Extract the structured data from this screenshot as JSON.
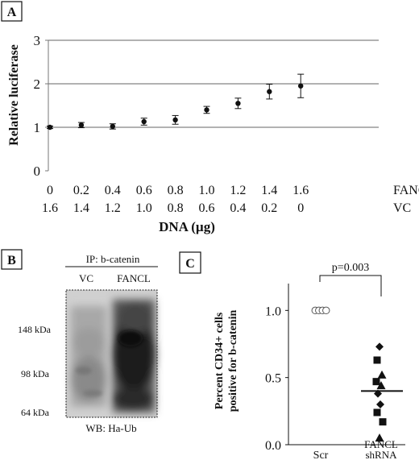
{
  "chart_data": [
    {
      "panel": "A",
      "type": "scatter",
      "ylabel": "Relative luciferase",
      "xlabel": "DNA (µg)",
      "ylim": [
        0,
        3
      ],
      "yticks": [
        "0",
        "1",
        "2",
        "3"
      ],
      "grid": true,
      "row1_name": "FANCL",
      "row2_name": "VC",
      "fancl": [
        "0",
        "0.2",
        "0.4",
        "0.6",
        "0.8",
        "1.0",
        "1.2",
        "1.4",
        "1.6"
      ],
      "vc": [
        "1.6",
        "1.4",
        "1.2",
        "1.0",
        "0.8",
        "0.6",
        "0.4",
        "0.2",
        "0"
      ],
      "values": [
        1.0,
        1.05,
        1.02,
        1.13,
        1.17,
        1.4,
        1.55,
        1.82,
        1.95
      ],
      "errors": [
        0.03,
        0.06,
        0.06,
        0.08,
        0.1,
        0.08,
        0.12,
        0.17,
        0.27
      ]
    },
    {
      "panel": "B",
      "type": "blot",
      "ip_label": "IP: b-catenin",
      "lanes": [
        "VC",
        "FANCL"
      ],
      "markers": [
        "148 kDa",
        "98 kDa",
        "64 kDa"
      ],
      "wb_label": "WB: Ha-Ub"
    },
    {
      "panel": "C",
      "type": "scatter",
      "ylabel_line1": "Percent CD34+ cells",
      "ylabel_line2": "positive for b-catenin",
      "ylim": [
        0,
        1.2
      ],
      "yticks": [
        "0.0",
        "0.5",
        "1.0"
      ],
      "categories": [
        "Scr",
        "FANCL shRNA"
      ],
      "category_lines": [
        [
          "Scr"
        ],
        [
          "FANCL",
          "shRNA"
        ]
      ],
      "pvalue": "p=0.003",
      "scr_points": [
        1.0,
        1.0,
        1.0,
        1.0
      ],
      "fancl_points": [
        {
          "y": 0.73,
          "marker": "diamond"
        },
        {
          "y": 0.63,
          "marker": "square"
        },
        {
          "y": 0.52,
          "marker": "triangle"
        },
        {
          "y": 0.47,
          "marker": "square"
        },
        {
          "y": 0.44,
          "marker": "triangle"
        },
        {
          "y": 0.38,
          "marker": "diamond"
        },
        {
          "y": 0.3,
          "marker": "diamond"
        },
        {
          "y": 0.24,
          "marker": "square"
        },
        {
          "y": 0.17,
          "marker": "square"
        },
        {
          "y": 0.05,
          "marker": "triangle"
        }
      ],
      "fancl_mean": 0.4
    }
  ]
}
